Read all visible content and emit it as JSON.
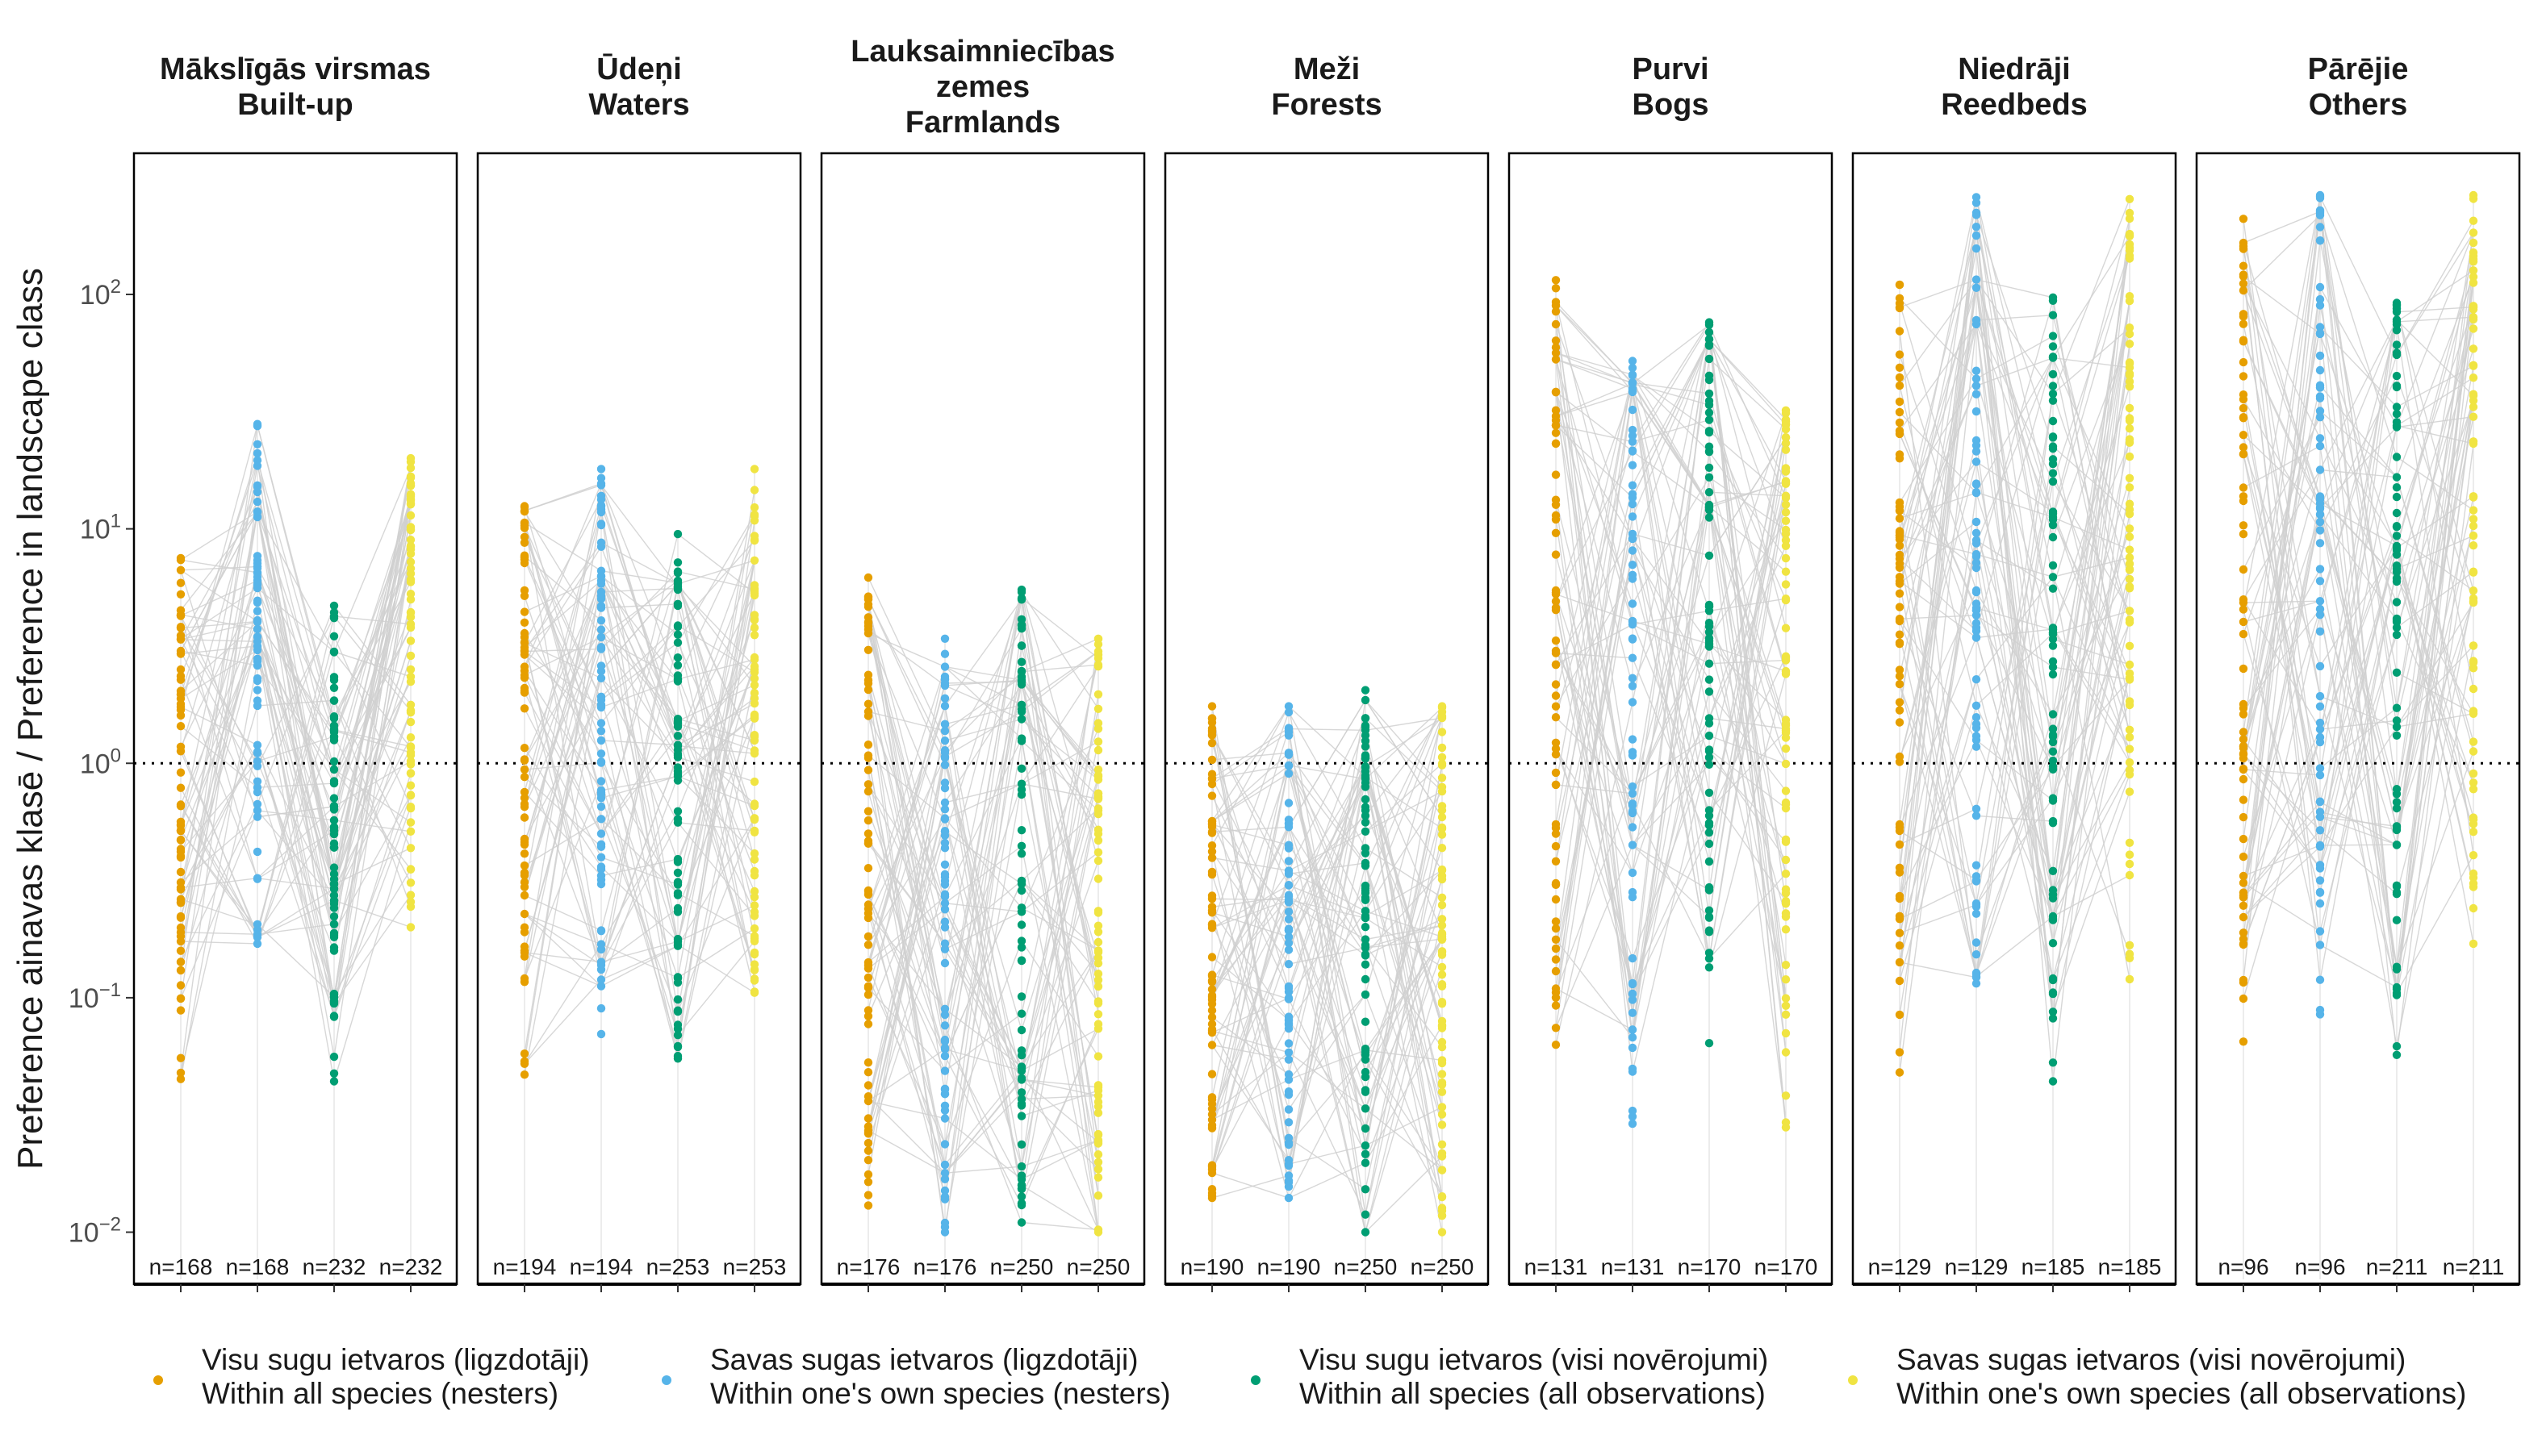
{
  "chart_data": {
    "type": "scatter",
    "y_label": "Preference ainavas klasē / Preference in landscape class",
    "y_scale": "log10",
    "y_ticks": [
      {
        "value": 0.01,
        "label_base": "10",
        "label_exp": "−2"
      },
      {
        "value": 0.1,
        "label_base": "10",
        "label_exp": "−1"
      },
      {
        "value": 1,
        "label_base": "10",
        "label_exp": "0"
      },
      {
        "value": 10,
        "label_base": "10",
        "label_exp": "1"
      },
      {
        "value": 100,
        "label_base": "10",
        "label_exp": "2"
      }
    ],
    "ylim": [
      0.006,
      400
    ],
    "reference_line": 1,
    "series": [
      {
        "name_lv": "Visu sugu ietvaros (ligzdotāji)",
        "name_en": "Within all species (nesters)",
        "color": "#E69F00"
      },
      {
        "name_lv": "Savas sugas ietvaros (ligzdotāji)",
        "name_en": "Within one's own species (nesters)",
        "color": "#56B4E9"
      },
      {
        "name_lv": "Visu sugu ietvaros (visi novērojumi)",
        "name_en": "Within all species (all observations)",
        "color": "#009E73"
      },
      {
        "name_lv": "Savas sugas ietvaros (visi novērojumi)",
        "name_en": "Within one's own species (all observations)",
        "color": "#F0E442"
      }
    ],
    "panels": [
      {
        "title_lines": [
          "Mākslīgās virsmas",
          "Built-up"
        ],
        "n": [
          "n=168",
          "n=168",
          "n=232",
          "n=232"
        ],
        "ranges": [
          [
            0.045,
            7.5
          ],
          [
            0.17,
            28
          ],
          [
            0.044,
            4.7
          ],
          [
            0.2,
            20
          ]
        ]
      },
      {
        "title_lines": [
          "Ūdeņi",
          "Waters"
        ],
        "n": [
          "n=194",
          "n=194",
          "n=253",
          "n=253"
        ],
        "ranges": [
          [
            0.047,
            12.5
          ],
          [
            0.07,
            18
          ],
          [
            0.055,
            9.5
          ],
          [
            0.105,
            18
          ]
        ]
      },
      {
        "title_lines": [
          "Lauksaimniecības",
          "zemes",
          "Farmlands"
        ],
        "n": [
          "n=176",
          "n=176",
          "n=250",
          "n=250"
        ],
        "ranges": [
          [
            0.013,
            6.2
          ],
          [
            0.01,
            3.4
          ],
          [
            0.011,
            5.5
          ],
          [
            0.01,
            3.4
          ]
        ]
      },
      {
        "title_lines": [
          "Meži",
          "Forests"
        ],
        "n": [
          "n=190",
          "n=190",
          "n=250",
          "n=250"
        ],
        "ranges": [
          [
            0.014,
            1.75
          ],
          [
            0.014,
            1.75
          ],
          [
            0.01,
            2.05
          ],
          [
            0.01,
            1.75
          ]
        ]
      },
      {
        "title_lines": [
          "Purvi",
          "Bogs"
        ],
        "n": [
          "n=131",
          "n=131",
          "n=170",
          "n=170"
        ],
        "ranges": [
          [
            0.063,
            115
          ],
          [
            0.029,
            52
          ],
          [
            0.064,
            76
          ],
          [
            0.028,
            32
          ]
        ]
      },
      {
        "title_lines": [
          "Niedrāji",
          "Reedbeds"
        ],
        "n": [
          "n=129",
          "n=129",
          "n=185",
          "n=185"
        ],
        "ranges": [
          [
            0.048,
            110
          ],
          [
            0.115,
            260
          ],
          [
            0.044,
            97
          ],
          [
            0.12,
            255
          ]
        ]
      },
      {
        "title_lines": [
          "Pārējie",
          "Others"
        ],
        "n": [
          "n=96",
          "n=96",
          "n=211",
          "n=211"
        ],
        "ranges": [
          [
            0.065,
            210
          ],
          [
            0.085,
            265
          ],
          [
            0.057,
            92
          ],
          [
            0.17,
            265
          ]
        ]
      }
    ],
    "legend_placement": "bottom"
  }
}
